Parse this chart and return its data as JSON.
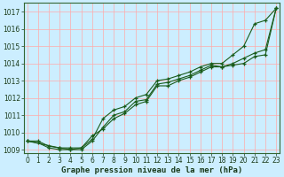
{
  "xlabel": "Graphe pression niveau de la mer (hPa)",
  "bg_color": "#cceeff",
  "grid_color": "#ffaaaa",
  "line_color": "#1a5c1a",
  "x_values": [
    0,
    1,
    2,
    3,
    4,
    5,
    6,
    7,
    8,
    9,
    10,
    11,
    12,
    13,
    14,
    15,
    16,
    17,
    18,
    19,
    20,
    21,
    22,
    23
  ],
  "series1": [
    1009.5,
    1009.5,
    1009.2,
    1009.1,
    1009.1,
    1009.1,
    1009.8,
    1010.2,
    1010.8,
    1011.1,
    1011.6,
    1011.8,
    1012.7,
    1012.7,
    1013.0,
    1013.2,
    1013.5,
    1013.8,
    1013.8,
    1013.9,
    1014.0,
    1014.4,
    1014.5,
    1017.2
  ],
  "series2": [
    1009.5,
    1009.4,
    1009.1,
    1009.0,
    1009.0,
    1009.0,
    1009.5,
    1010.3,
    1011.0,
    1011.2,
    1011.8,
    1011.9,
    1012.8,
    1012.9,
    1013.1,
    1013.3,
    1013.6,
    1013.9,
    1013.8,
    1014.0,
    1014.3,
    1014.6,
    1014.8,
    1017.2
  ],
  "series3": [
    1009.5,
    null,
    null,
    1009.1,
    1009.0,
    1009.1,
    1009.6,
    1010.8,
    1011.3,
    1011.5,
    1012.0,
    1012.2,
    1013.0,
    1013.1,
    1013.3,
    1013.5,
    1013.8,
    1014.0,
    1014.0,
    1014.5,
    1015.0,
    1016.3,
    1016.5,
    1017.2
  ],
  "ylim_min": 1009.0,
  "ylim_max": 1017.5,
  "yticks": [
    1009,
    1010,
    1011,
    1012,
    1013,
    1014,
    1015,
    1016,
    1017
  ],
  "xlim_min": -0.3,
  "xlim_max": 23.3,
  "xticks": [
    0,
    1,
    2,
    3,
    4,
    5,
    6,
    7,
    8,
    9,
    10,
    11,
    12,
    13,
    14,
    15,
    16,
    17,
    18,
    19,
    20,
    21,
    22,
    23
  ],
  "tick_fontsize": 5.5,
  "xlabel_fontsize": 6.5,
  "spine_color": "#336633",
  "tick_color": "#1a3a1a"
}
